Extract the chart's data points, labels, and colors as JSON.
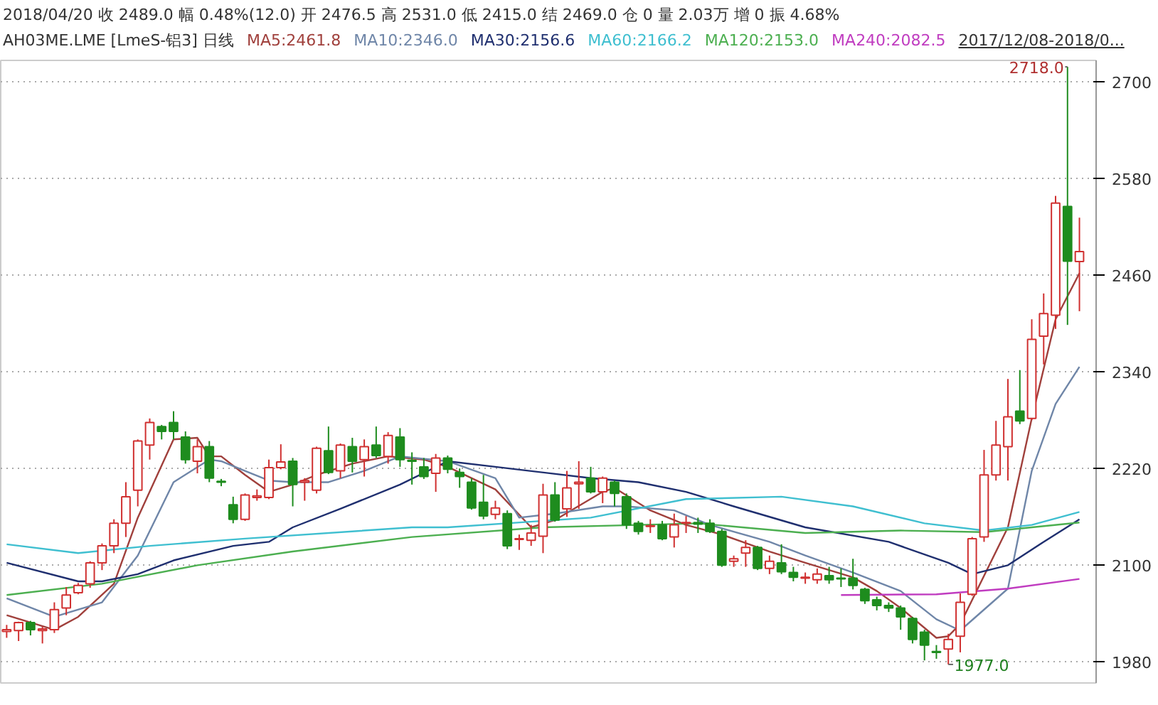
{
  "chart_data": {
    "type": "candlestick",
    "title": "2018/04/20  收 2489.0  幅 0.48%(12.0)  开 2476.5  高 2531.0  低 2415.0  结 2469.0  仓 0  量 2.03万  增 0  振 4.68%",
    "subtitle": "AH03ME.LME [LmeS-铝3]  日线",
    "categories": [
      null,
      null,
      null,
      null,
      null,
      null,
      null,
      null,
      null,
      null,
      null,
      null,
      null,
      null,
      null,
      null,
      null,
      null,
      null,
      null,
      null,
      null,
      null,
      null,
      null,
      null,
      null,
      null,
      null,
      null,
      null,
      null,
      null,
      null,
      null,
      null,
      null,
      null,
      null,
      null,
      null,
      null,
      null,
      null,
      null,
      null,
      null,
      null,
      null,
      null,
      null,
      null,
      null,
      null,
      null,
      null,
      null,
      null,
      null,
      null,
      null,
      null,
      null,
      null,
      null,
      null,
      null,
      null,
      null,
      null,
      null,
      null,
      null,
      null,
      null,
      null,
      null,
      null,
      null,
      null,
      null,
      null,
      null,
      null,
      null,
      null,
      null,
      null,
      null,
      null,
      null
    ],
    "ohlc": [
      [
        2018,
        2026,
        2010,
        2020
      ],
      [
        2019,
        2030,
        2006,
        2029
      ],
      [
        2029,
        2031,
        2013,
        2020
      ],
      [
        2019,
        2024,
        2003,
        2021
      ],
      [
        2020,
        2054,
        2016,
        2045
      ],
      [
        2047,
        2073,
        2038,
        2063
      ],
      [
        2066,
        2078,
        2064,
        2075
      ],
      [
        2077,
        2105,
        2072,
        2103
      ],
      [
        2103,
        2127,
        2094,
        2124
      ],
      [
        2124,
        2157,
        2115,
        2152
      ],
      [
        2152,
        2203,
        2135,
        2185
      ],
      [
        2193,
        2256,
        2173,
        2254
      ],
      [
        2249,
        2282,
        2231,
        2277
      ],
      [
        2272,
        2274,
        2256,
        2266
      ],
      [
        2277,
        2291,
        2256,
        2266
      ],
      [
        2259,
        2266,
        2226,
        2231
      ],
      [
        2229,
        2256,
        2214,
        2247
      ],
      [
        2247,
        2254,
        2203,
        2208
      ],
      [
        2204,
        2207,
        2198,
        2203
      ],
      [
        2175,
        2185,
        2152,
        2157
      ],
      [
        2157,
        2189,
        2155,
        2187
      ],
      [
        2184,
        2194,
        2180,
        2186
      ],
      [
        2184,
        2231,
        2182,
        2221
      ],
      [
        2221,
        2250,
        2219,
        2228
      ],
      [
        2229,
        2233,
        2173,
        2200
      ],
      [
        2203,
        2208,
        2180,
        2205
      ],
      [
        2193,
        2247,
        2189,
        2245
      ],
      [
        2242,
        2272,
        2213,
        2215
      ],
      [
        2217,
        2251,
        2208,
        2249
      ],
      [
        2247,
        2258,
        2215,
        2229
      ],
      [
        2231,
        2256,
        2210,
        2247
      ],
      [
        2249,
        2272,
        2233,
        2236
      ],
      [
        2235,
        2265,
        2226,
        2261
      ],
      [
        2259,
        2270,
        2222,
        2231
      ],
      [
        2230,
        2240,
        2200,
        2229
      ],
      [
        2222,
        2233,
        2207,
        2210
      ],
      [
        2214,
        2238,
        2191,
        2233
      ],
      [
        2233,
        2236,
        2214,
        2219
      ],
      [
        2215,
        2220,
        2196,
        2210
      ],
      [
        2203,
        2208,
        2169,
        2171
      ],
      [
        2178,
        2212,
        2157,
        2161
      ],
      [
        2163,
        2180,
        2157,
        2171
      ],
      [
        2164,
        2168,
        2120,
        2124
      ],
      [
        2132,
        2138,
        2119,
        2133
      ],
      [
        2131,
        2150,
        2124,
        2140
      ],
      [
        2136,
        2201,
        2115,
        2187
      ],
      [
        2187,
        2203,
        2154,
        2156
      ],
      [
        2170,
        2217,
        2160,
        2196
      ],
      [
        2201,
        2229,
        2170,
        2203
      ],
      [
        2208,
        2222,
        2189,
        2191
      ],
      [
        2191,
        2210,
        2177,
        2208
      ],
      [
        2203,
        2205,
        2173,
        2189
      ],
      [
        2185,
        2189,
        2145,
        2150
      ],
      [
        2152,
        2155,
        2138,
        2142
      ],
      [
        2148,
        2157,
        2140,
        2149
      ],
      [
        2150,
        2155,
        2131,
        2133
      ],
      [
        2135,
        2164,
        2122,
        2150
      ],
      [
        2152,
        2161,
        2140,
        2153
      ],
      [
        2153,
        2159,
        2140,
        2151
      ],
      [
        2152,
        2157,
        2140,
        2142
      ],
      [
        2142,
        2145,
        2098,
        2100
      ],
      [
        2105,
        2112,
        2098,
        2108
      ],
      [
        2115,
        2131,
        2098,
        2122
      ],
      [
        2122,
        2124,
        2094,
        2096
      ],
      [
        2096,
        2112,
        2089,
        2105
      ],
      [
        2103,
        2126,
        2089,
        2092
      ],
      [
        2091,
        2098,
        2080,
        2085
      ],
      [
        2084,
        2091,
        2077,
        2085
      ],
      [
        2082,
        2096,
        2077,
        2089
      ],
      [
        2087,
        2098,
        2077,
        2082
      ],
      [
        2084,
        2096,
        2073,
        2083
      ],
      [
        2084,
        2108,
        2070,
        2075
      ],
      [
        2070,
        2072,
        2052,
        2056
      ],
      [
        2057,
        2061,
        2044,
        2050
      ],
      [
        2050,
        2054,
        2042,
        2047
      ],
      [
        2047,
        2050,
        2020,
        2036
      ],
      [
        2034,
        2036,
        2003,
        2008
      ],
      [
        2017,
        2020,
        1982,
        2001
      ],
      [
        1993,
        2001,
        1984,
        1992
      ],
      [
        1996,
        2015,
        1977,
        2008
      ],
      [
        2012,
        2065,
        1992,
        2054
      ],
      [
        2064,
        2135,
        2062,
        2133
      ],
      [
        2135,
        2243,
        2129,
        2212
      ],
      [
        2212,
        2279,
        2205,
        2249
      ],
      [
        2247,
        2331,
        2205,
        2284
      ],
      [
        2291,
        2342,
        2275,
        2279
      ],
      [
        2282,
        2405,
        2280,
        2380
      ],
      [
        2384,
        2437,
        2349,
        2412
      ],
      [
        2410,
        2558,
        2393,
        2549
      ],
      [
        2545,
        2718,
        2398,
        2477
      ],
      [
        2476.5,
        2531,
        2415,
        2489
      ]
    ],
    "series": [
      {
        "name": "MA5:2461.8",
        "type": "line",
        "color": "#a0403c",
        "values": [
          2038,
          null,
          null,
          null,
          2020,
          null,
          2036,
          null,
          null,
          2077,
          null,
          2159,
          null,
          null,
          2256,
          null,
          2258,
          2235,
          2235,
          null,
          2212,
          null,
          2191,
          null,
          2200,
          null,
          2212,
          null,
          null,
          2226,
          null,
          null,
          2235,
          null,
          null,
          2231,
          null,
          2222,
          null,
          null,
          null,
          2194,
          null,
          null,
          2147,
          null,
          2156,
          null,
          null,
          null,
          2191,
          2196,
          null,
          null,
          2168,
          null,
          null,
          2150,
          null,
          null,
          2138,
          null,
          null,
          null,
          2117,
          null,
          null,
          2103,
          null,
          null,
          null,
          2085,
          null,
          2068,
          null,
          2047,
          null,
          null,
          2010,
          2012,
          2027,
          null,
          null,
          null,
          2147,
          null,
          2282,
          null,
          2405,
          null,
          2462
        ]
      },
      {
        "name": "MA10:2346.0",
        "type": "line",
        "color": "#6f86a8",
        "values": [
          2059,
          null,
          null,
          null,
          2036,
          null,
          null,
          null,
          2054,
          null,
          null,
          2112,
          null,
          null,
          2203,
          null,
          null,
          2231,
          2229,
          null,
          2217,
          null,
          2205,
          null,
          2203,
          null,
          null,
          2203,
          null,
          null,
          2217,
          null,
          null,
          2235,
          null,
          null,
          null,
          2229,
          null,
          null,
          null,
          2208,
          null,
          2159,
          null,
          null,
          2164,
          null,
          null,
          null,
          2173,
          null,
          2173,
          null,
          null,
          null,
          2168,
          null,
          null,
          2150,
          null,
          null,
          null,
          null,
          2129,
          null,
          null,
          2112,
          null,
          null,
          null,
          2091,
          null,
          null,
          null,
          2068,
          null,
          null,
          2033,
          null,
          2019,
          null,
          null,
          null,
          2071,
          null,
          2217,
          null,
          2300,
          null,
          2346
        ]
      },
      {
        "name": "MA30:2156.6",
        "type": "line",
        "color": "#1f2f6f",
        "values": [
          2103,
          null,
          null,
          null,
          null,
          null,
          2080,
          null,
          2080,
          null,
          null,
          2089,
          null,
          null,
          2106,
          null,
          null,
          null,
          null,
          2124,
          null,
          null,
          2129,
          null,
          2147,
          null,
          null,
          null,
          2170,
          null,
          null,
          null,
          null,
          2200,
          null,
          null,
          null,
          2229,
          null,
          null,
          null,
          2222,
          null,
          null,
          null,
          null,
          null,
          null,
          null,
          2208,
          null,
          null,
          null,
          2203,
          null,
          null,
          null,
          2191,
          null,
          null,
          null,
          2173,
          null,
          null,
          null,
          null,
          null,
          2147,
          null,
          null,
          null,
          null,
          null,
          null,
          2129,
          null,
          null,
          null,
          null,
          2103,
          null,
          2089,
          null,
          null,
          2100,
          null,
          null,
          2129,
          null,
          null,
          2157
        ]
      },
      {
        "name": "MA60:2166.2",
        "type": "line",
        "color": "#3fbfd0",
        "values": [
          2126,
          null,
          null,
          null,
          null,
          null,
          2115,
          null,
          null,
          null,
          null,
          null,
          2124,
          null,
          null,
          null,
          null,
          null,
          null,
          null,
          2133,
          null,
          null,
          null,
          null,
          null,
          null,
          null,
          null,
          null,
          null,
          null,
          null,
          null,
          2147,
          null,
          null,
          2147,
          null,
          null,
          null,
          null,
          null,
          null,
          null,
          null,
          null,
          null,
          null,
          2159,
          null,
          null,
          null,
          null,
          null,
          null,
          null,
          2182,
          null,
          null,
          null,
          null,
          null,
          null,
          null,
          2185,
          null,
          null,
          null,
          null,
          null,
          2173,
          null,
          null,
          null,
          null,
          null,
          2152,
          null,
          null,
          null,
          null,
          2143,
          null,
          null,
          null,
          2150,
          null,
          null,
          null,
          2166
        ]
      },
      {
        "name": "MA120:2153.0",
        "type": "line",
        "color": "#4caf50",
        "values": [
          2063,
          null,
          null,
          null,
          null,
          null,
          null,
          null,
          2077,
          null,
          null,
          null,
          null,
          null,
          null,
          null,
          2100,
          null,
          null,
          null,
          null,
          null,
          null,
          null,
          2117,
          null,
          null,
          null,
          null,
          null,
          null,
          null,
          null,
          null,
          2135,
          null,
          null,
          null,
          null,
          null,
          null,
          null,
          null,
          null,
          null,
          2147,
          null,
          null,
          null,
          null,
          null,
          null,
          null,
          2150,
          null,
          null,
          null,
          null,
          2152,
          null,
          null,
          null,
          null,
          null,
          null,
          null,
          null,
          2140,
          null,
          null,
          null,
          null,
          null,
          null,
          null,
          2143,
          null,
          null,
          null,
          null,
          null,
          null,
          2141,
          null,
          null,
          null,
          2147,
          null,
          null,
          null,
          2153
        ]
      },
      {
        "name": "MA240:2082.5",
        "type": "line",
        "color": "#c03cc0",
        "values": [
          null,
          null,
          null,
          null,
          null,
          null,
          null,
          null,
          null,
          null,
          null,
          null,
          null,
          null,
          null,
          null,
          null,
          null,
          null,
          null,
          null,
          null,
          null,
          null,
          null,
          null,
          null,
          null,
          null,
          null,
          null,
          null,
          null,
          null,
          null,
          null,
          null,
          null,
          null,
          null,
          null,
          null,
          null,
          null,
          null,
          null,
          null,
          null,
          null,
          null,
          null,
          null,
          null,
          null,
          null,
          null,
          null,
          null,
          null,
          null,
          null,
          null,
          null,
          null,
          null,
          null,
          null,
          null,
          null,
          null,
          2063,
          null,
          null,
          null,
          null,
          null,
          null,
          null,
          2064,
          null,
          null,
          null,
          null,
          null,
          2071,
          null,
          null,
          null,
          null,
          null,
          2083
        ]
      }
    ],
    "ylim": [
      1954,
      2726
    ],
    "yticks": [
      1980,
      2100,
      2220,
      2340,
      2460,
      2580,
      2700
    ],
    "grid": "y",
    "legend": "top",
    "tick_labels": "y",
    "annotations": [
      "2718.0",
      "1977.0",
      "2017/12/08-2018/0..."
    ]
  }
}
